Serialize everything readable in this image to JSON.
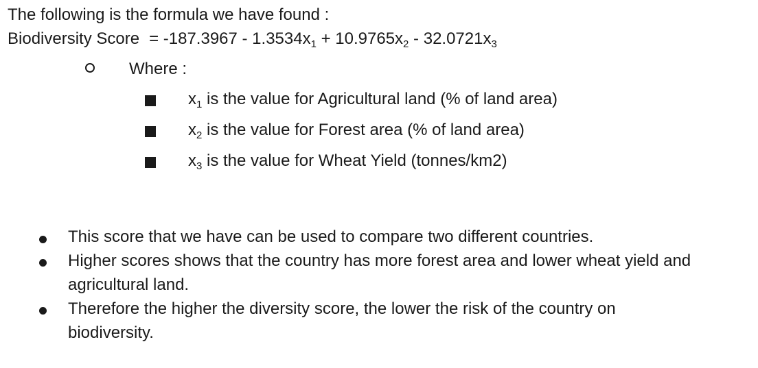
{
  "intro": "The following is the formula we have found :",
  "formula": {
    "label": "Biodiversity Score",
    "equals": "= -187.3967 - 1.3534x",
    "sub1": "1",
    "term2": " + 10.9765x",
    "sub2": "2",
    "term3": " - 32.0721x",
    "sub3": "3"
  },
  "where_label": "Where :",
  "variables": [
    {
      "var": "x",
      "sub": "1",
      "text": " is the value for Agricultural land (% of land area)"
    },
    {
      "var": "x",
      "sub": "2",
      "text": " is the value for Forest area (% of land area)"
    },
    {
      "var": "x",
      "sub": "3",
      "text": " is the value for Wheat Yield (tonnes/km2)"
    }
  ],
  "bullets": [
    "This score that we have can be used to compare two different countries.",
    "Higher scores shows that the country has more forest area and lower wheat yield and agricultural land.",
    "Therefore the higher the diversity score, the lower the risk of the country on biodiversity."
  ]
}
